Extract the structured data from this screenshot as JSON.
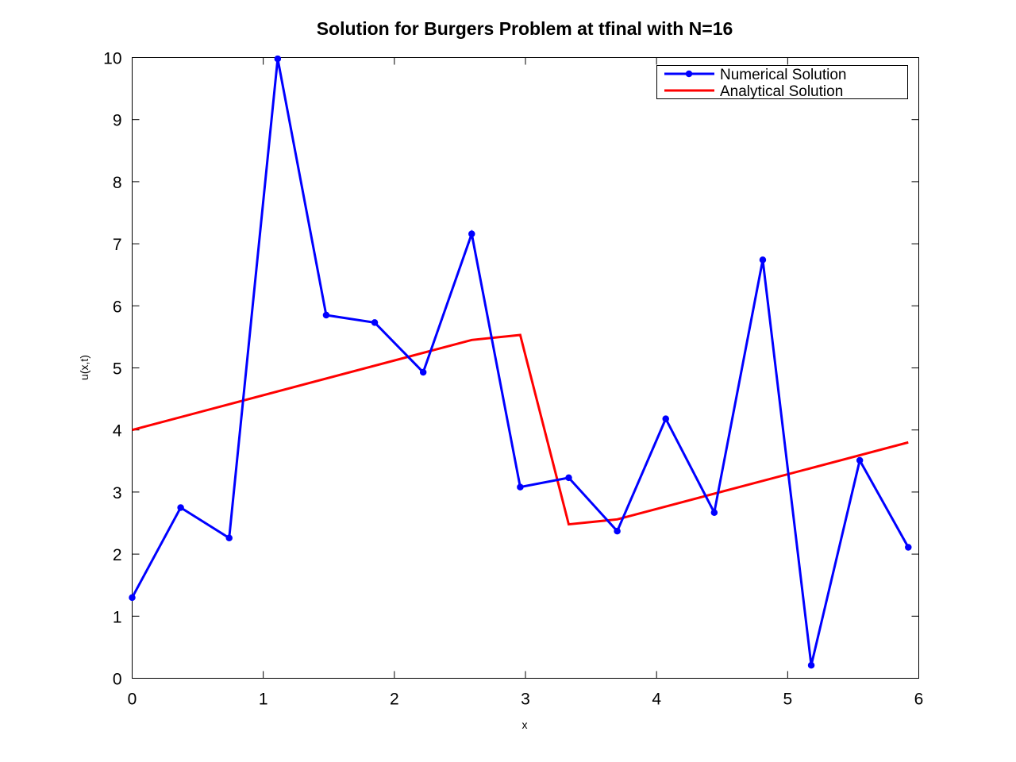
{
  "chart_data": {
    "type": "line",
    "title": "Solution for Burgers Problem at tfinal with N=16",
    "xlabel": "x",
    "ylabel": "u(x,t)",
    "xlim": [
      0,
      6
    ],
    "ylim": [
      0,
      10
    ],
    "xticks": [
      "0",
      "1",
      "2",
      "3",
      "4",
      "5",
      "6"
    ],
    "yticks": [
      "0",
      "1",
      "2",
      "3",
      "4",
      "5",
      "6",
      "7",
      "8",
      "9",
      "10"
    ],
    "grid": false,
    "legend_position": "top-right",
    "series": [
      {
        "name": "Numerical Solution",
        "color": "#0000ff",
        "marker": "circle",
        "x": [
          0,
          0.37,
          0.74,
          1.11,
          1.48,
          1.85,
          2.22,
          2.59,
          2.96,
          3.33,
          3.7,
          4.07,
          4.44,
          4.81,
          5.18,
          5.55,
          5.92
        ],
        "y": [
          1.3,
          2.75,
          2.26,
          9.98,
          5.85,
          5.73,
          4.93,
          7.16,
          3.08,
          3.23,
          2.37,
          4.18,
          2.67,
          6.74,
          0.21,
          3.51,
          2.11
        ]
      },
      {
        "name": "Analytical Solution",
        "color": "#ff0000",
        "marker": "none",
        "x": [
          0,
          2.59,
          2.96,
          3.33,
          3.7,
          5.92
        ],
        "y": [
          4.0,
          5.45,
          5.53,
          2.48,
          2.56,
          3.8
        ]
      }
    ]
  }
}
